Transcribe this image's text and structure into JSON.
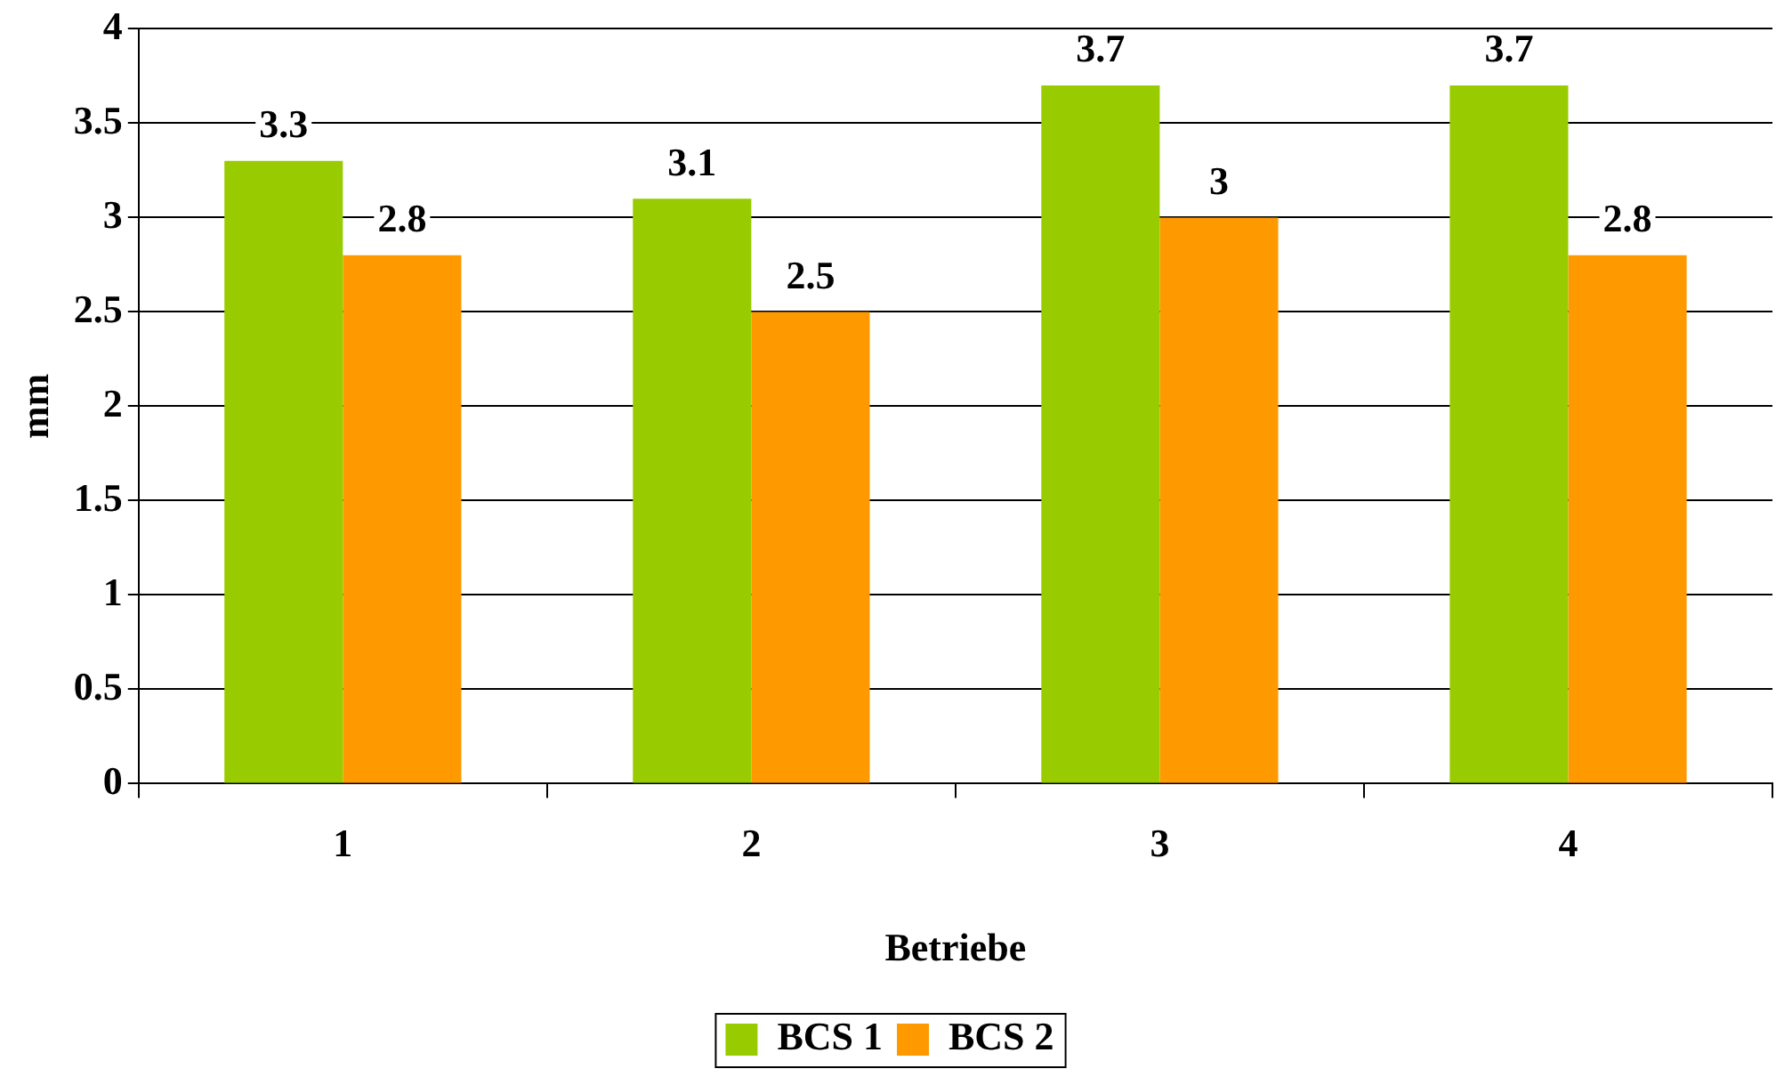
{
  "chart_data": {
    "type": "bar",
    "xlabel": "Betriebe",
    "ylabel": "mm",
    "categories": [
      "1",
      "2",
      "3",
      "4"
    ],
    "series": [
      {
        "name": "BCS 1",
        "color": "#99cc00",
        "values": [
          3.3,
          3.1,
          3.7,
          3.7
        ]
      },
      {
        "name": "BCS 2",
        "color": "#ff9900",
        "values": [
          2.8,
          2.5,
          3,
          2.8
        ]
      }
    ],
    "ylim": [
      0,
      4
    ],
    "yticks": [
      0,
      0.5,
      1,
      1.5,
      2,
      2.5,
      3,
      3.5,
      4
    ],
    "grid": "y",
    "legend": "bottom",
    "data_labels": true
  }
}
